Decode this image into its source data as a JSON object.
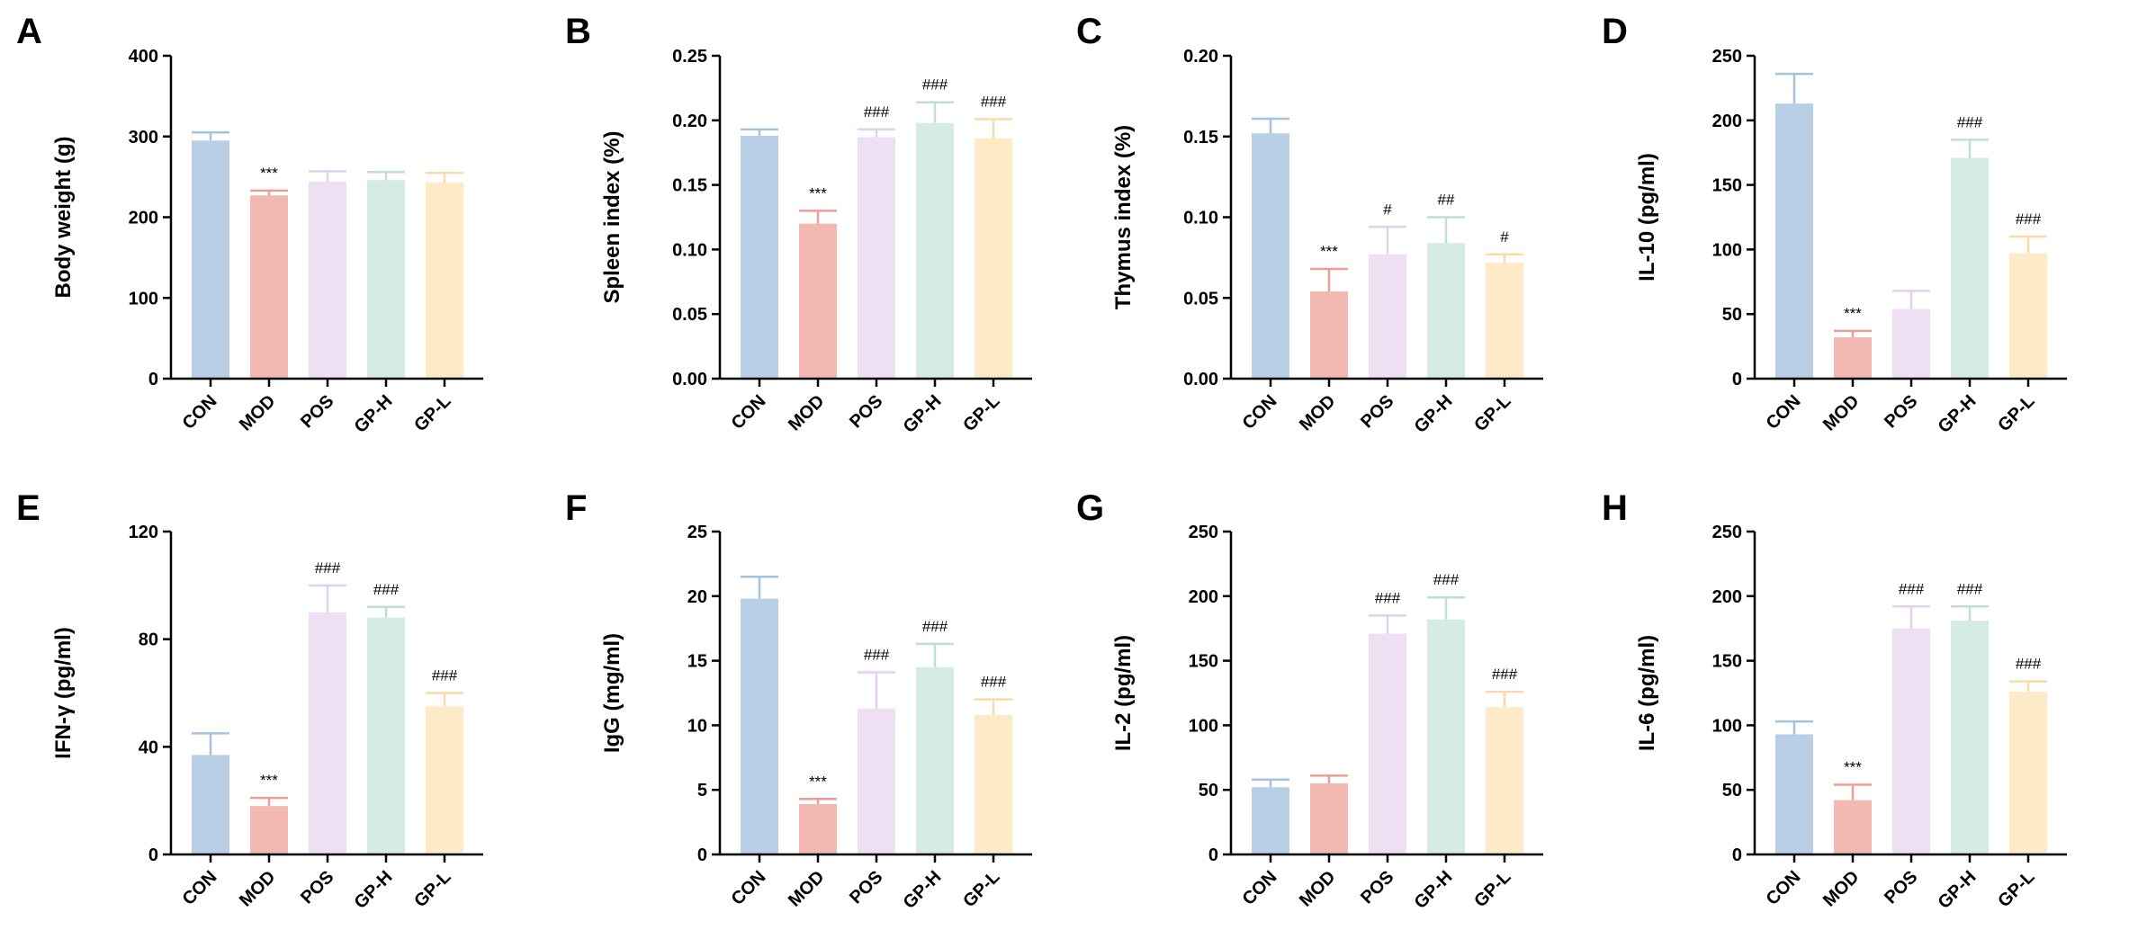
{
  "palette": {
    "CON": "#b8cfe6",
    "MOD": "#f2b8b1",
    "POS": "#eedff3",
    "GP-H": "#d5ece2",
    "GP-L": "#fdeac7",
    "CON_err": "#a6c3de",
    "MOD_err": "#ec9d95",
    "POS_err": "#e5cfee",
    "GP-H_err": "#bfe0d0",
    "GP-L_err": "#f9dba8"
  },
  "chart_data": [
    {
      "panel": "A",
      "type": "bar",
      "ylabel": "Body weight (g)",
      "categories": [
        "CON",
        "MOD",
        "POS",
        "GP-H",
        "GP-L"
      ],
      "values": [
        295,
        227,
        244,
        246,
        243
      ],
      "errors": [
        10,
        6,
        13,
        10,
        12
      ],
      "significance": [
        "",
        "***",
        "",
        "",
        ""
      ],
      "ylim": [
        0,
        400
      ],
      "ticks": [
        0,
        100,
        200,
        300,
        400
      ],
      "tick_labels": [
        "0",
        "100",
        "200",
        "300",
        "400"
      ]
    },
    {
      "panel": "B",
      "type": "bar",
      "ylabel": "Spleen index (%)",
      "categories": [
        "CON",
        "MOD",
        "POS",
        "GP-H",
        "GP-L"
      ],
      "values": [
        0.188,
        0.12,
        0.187,
        0.198,
        0.186
      ],
      "errors": [
        0.005,
        0.01,
        0.006,
        0.016,
        0.015
      ],
      "significance": [
        "",
        "***",
        "###",
        "###",
        "###"
      ],
      "ylim": [
        0,
        0.25
      ],
      "ticks": [
        0,
        0.05,
        0.1,
        0.15,
        0.2,
        0.25
      ],
      "tick_labels": [
        "0.00",
        "0.05",
        "0.10",
        "0.15",
        "0.20",
        "0.25"
      ]
    },
    {
      "panel": "C",
      "type": "bar",
      "ylabel": "Thymus index (%)",
      "categories": [
        "CON",
        "MOD",
        "POS",
        "GP-H",
        "GP-L"
      ],
      "values": [
        0.152,
        0.054,
        0.077,
        0.084,
        0.072
      ],
      "errors": [
        0.009,
        0.014,
        0.017,
        0.016,
        0.005
      ],
      "significance": [
        "",
        "***",
        "#",
        "##",
        "#"
      ],
      "ylim": [
        0,
        0.2
      ],
      "ticks": [
        0,
        0.05,
        0.1,
        0.15,
        0.2
      ],
      "tick_labels": [
        "0.00",
        "0.05",
        "0.10",
        "0.15",
        "0.20"
      ]
    },
    {
      "panel": "D",
      "type": "bar",
      "ylabel": "IL-10 (pg/ml)",
      "categories": [
        "CON",
        "MOD",
        "POS",
        "GP-H",
        "GP-L"
      ],
      "values": [
        213,
        32,
        54,
        171,
        97
      ],
      "errors": [
        23,
        5,
        14,
        14,
        13
      ],
      "significance": [
        "",
        "***",
        "",
        "###",
        "###"
      ],
      "ylim": [
        0,
        250
      ],
      "ticks": [
        0,
        50,
        100,
        150,
        200,
        250
      ],
      "tick_labels": [
        "0",
        "50",
        "100",
        "150",
        "200",
        "250"
      ]
    },
    {
      "panel": "E",
      "type": "bar",
      "ylabel": "IFN-γ (pg/ml)",
      "categories": [
        "CON",
        "MOD",
        "POS",
        "GP-H",
        "GP-L"
      ],
      "values": [
        37,
        18,
        90,
        88,
        55
      ],
      "errors": [
        8,
        3,
        10,
        4,
        5
      ],
      "significance": [
        "",
        "***",
        "###",
        "###",
        "###"
      ],
      "ylim": [
        0,
        120
      ],
      "ticks": [
        0,
        40,
        80,
        120
      ],
      "tick_labels": [
        "0",
        "40",
        "80",
        "120"
      ]
    },
    {
      "panel": "F",
      "type": "bar",
      "ylabel": "IgG (mg/ml)",
      "categories": [
        "CON",
        "MOD",
        "POS",
        "GP-H",
        "GP-L"
      ],
      "values": [
        19.8,
        3.9,
        11.3,
        14.5,
        10.8
      ],
      "errors": [
        1.7,
        0.4,
        2.8,
        1.8,
        1.2
      ],
      "significance": [
        "",
        "***",
        "###",
        "###",
        "###"
      ],
      "ylim": [
        0,
        25
      ],
      "ticks": [
        0,
        5,
        10,
        15,
        20,
        25
      ],
      "tick_labels": [
        "0",
        "5",
        "10",
        "15",
        "20",
        "25"
      ]
    },
    {
      "panel": "G",
      "type": "bar",
      "ylabel": "IL-2 (pg/ml)",
      "categories": [
        "CON",
        "MOD",
        "POS",
        "GP-H",
        "GP-L"
      ],
      "values": [
        52,
        55,
        171,
        182,
        114
      ],
      "errors": [
        6,
        6,
        14,
        17,
        12
      ],
      "significance": [
        "",
        "",
        "###",
        "###",
        "###"
      ],
      "ylim": [
        0,
        250
      ],
      "ticks": [
        0,
        50,
        100,
        150,
        200,
        250
      ],
      "tick_labels": [
        "0",
        "50",
        "100",
        "150",
        "200",
        "250"
      ]
    },
    {
      "panel": "H",
      "type": "bar",
      "ylabel": "IL-6 (pg/ml)",
      "categories": [
        "CON",
        "MOD",
        "POS",
        "GP-H",
        "GP-L"
      ],
      "values": [
        93,
        42,
        175,
        181,
        126
      ],
      "errors": [
        10,
        12,
        17,
        11,
        8
      ],
      "significance": [
        "",
        "***",
        "###",
        "###",
        "###"
      ],
      "ylim": [
        0,
        250
      ],
      "ticks": [
        0,
        50,
        100,
        150,
        200,
        250
      ],
      "tick_labels": [
        "0",
        "50",
        "100",
        "150",
        "200",
        "250"
      ]
    }
  ]
}
